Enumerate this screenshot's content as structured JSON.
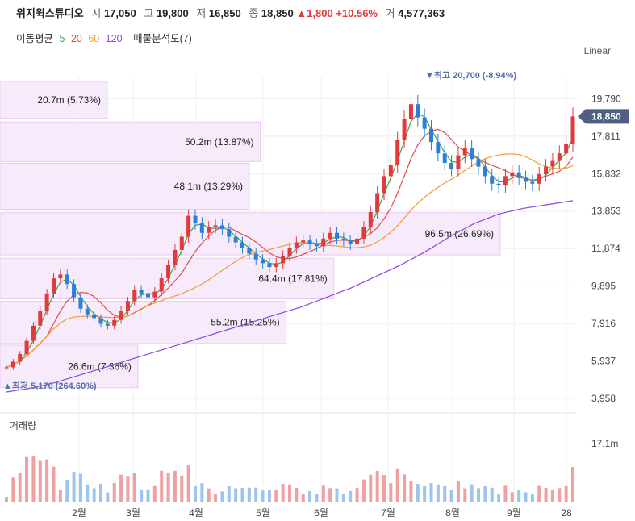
{
  "header": {
    "name": "위지윅스튜디오",
    "open_label": "시",
    "open": "17,050",
    "high_label": "고",
    "high": "19,800",
    "low_label": "저",
    "low": "16,850",
    "close_label": "종",
    "close": "18,850",
    "change": "▲1,800 +10.56%",
    "volume_label": "거",
    "volume": "4,577,363",
    "up_color": "#e03a3a"
  },
  "indicators": {
    "ma_label": "이동평균",
    "ma5": "5",
    "ma20": "20",
    "ma60": "60",
    "ma120": "120",
    "ma5_color": "#3aa64a",
    "ma20_color": "#e34b4b",
    "ma60_color": "#f39a3c",
    "ma120_color": "#8a48e0",
    "vp_label": "매물분석도(7)"
  },
  "scale_label": "Linear",
  "price_axis": {
    "ticks": [
      "19,790",
      "17,811",
      "15,832",
      "13,853",
      "11,874",
      "9,895",
      "7,916",
      "5,937",
      "3,958"
    ],
    "current": "18,850"
  },
  "annotations": {
    "high": "▼최고 20,700 (-8.94%)",
    "low": "▲최저 5,170 (264.60%)"
  },
  "volume_profile": [
    {
      "label": "20.7m (5.73%)"
    },
    {
      "label": "50.2m (13.87%)"
    },
    {
      "label": "48.1m (13.29%)"
    },
    {
      "label": "96.5m (26.69%)"
    },
    {
      "label": "64.4m (17.81%)"
    },
    {
      "label": "55.2m (15.25%)"
    },
    {
      "label": "26.6m (7.36%)"
    }
  ],
  "volume_panel": {
    "title": "거래량",
    "tick": "17.1m"
  },
  "x_axis": {
    "labels": [
      "2월",
      "3월",
      "4월",
      "5월",
      "6월",
      "7월",
      "8월",
      "9월",
      "28"
    ]
  },
  "chart_data": {
    "type": "candlestick",
    "ylim": [
      3958,
      20700
    ],
    "vp_ranges": [
      [
        18750,
        20700
      ],
      [
        16470,
        18560
      ],
      [
        13940,
        16380
      ],
      [
        11540,
        13770
      ],
      [
        9220,
        11360
      ],
      [
        6860,
        9090
      ],
      [
        4520,
        6770
      ]
    ],
    "vp_values": [
      20.7,
      50.2,
      48.1,
      96.5,
      64.4,
      55.2,
      26.6
    ],
    "price_path": [
      5600,
      5900,
      6300,
      7000,
      7800,
      8600,
      9500,
      10300,
      10500,
      10000,
      9300,
      8700,
      8400,
      8200,
      7900,
      7800,
      8100,
      8600,
      9100,
      9700,
      9500,
      9300,
      9600,
      10300,
      11000,
      11800,
      12500,
      13600,
      13200,
      12700,
      13000,
      13100,
      12900,
      12500,
      12200,
      11900,
      11600,
      11300,
      11100,
      10900,
      11100,
      11500,
      11900,
      12200,
      12300,
      12100,
      12000,
      12400,
      12700,
      12400,
      12300,
      12100,
      12400,
      13000,
      13800,
      14800,
      15700,
      16300,
      17600,
      18700,
      19500,
      18800,
      18200,
      17500,
      16900,
      16400,
      16100,
      16800,
      17200,
      16600,
      16200,
      15700,
      15300,
      15200,
      15700,
      15900,
      15600,
      15400,
      15300,
      15800,
      16200,
      16500,
      16900,
      17400,
      18850
    ],
    "ma120_path": [
      4300,
      4500,
      4800,
      5200,
      5600,
      6000,
      6400,
      6800,
      7200,
      7600,
      8000,
      8400,
      8800,
      9300,
      9800,
      10400,
      11000,
      11700,
      12500,
      13200,
      13700,
      14000,
      14200,
      14400
    ],
    "volume_max": 17.1
  }
}
